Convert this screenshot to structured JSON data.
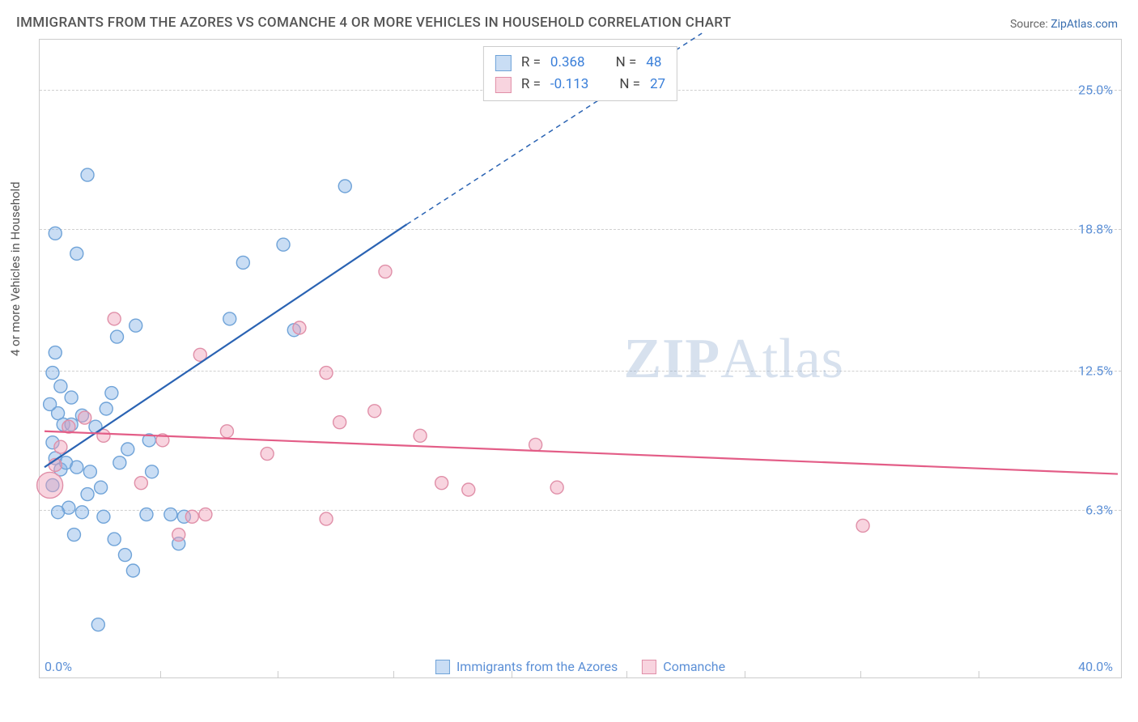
{
  "title": "IMMIGRANTS FROM THE AZORES VS COMANCHE 4 OR MORE VEHICLES IN HOUSEHOLD CORRELATION CHART",
  "source_label": "Source:",
  "source_link": "ZipAtlas.com",
  "ylabel": "4 or more Vehicles in Household",
  "watermark_a": "ZIP",
  "watermark_b": "Atlas",
  "chart": {
    "type": "scatter",
    "xlim": [
      0,
      40
    ],
    "ylim": [
      0,
      27
    ],
    "x_min_label": "0.0%",
    "x_max_label": "40.0%",
    "y_ticks": [
      {
        "v": 6.3,
        "label": "6.3%"
      },
      {
        "v": 12.5,
        "label": "12.5%"
      },
      {
        "v": 18.8,
        "label": "18.8%"
      },
      {
        "v": 25.0,
        "label": "25.0%"
      }
    ],
    "x_tick_positions": [
      4.3,
      8.7,
      13.0,
      17.4,
      21.7,
      26.1,
      30.4,
      34.8
    ],
    "grid_color": "#d0d0d0",
    "background_color": "#ffffff",
    "border_color": "#cccccc",
    "marker_radius": 8,
    "large_marker_radius": 16,
    "marker_stroke_width": 1.4,
    "line_width": 2.2,
    "series": [
      {
        "key": "azores",
        "label": "Immigrants from the Azores",
        "fill": "rgba(135,180,230,0.45)",
        "stroke": "#6fa3d8",
        "line_color": "#2a63b3",
        "stats": {
          "R": "0.368",
          "N": "48"
        },
        "trend": {
          "x1": 0,
          "y1": 8.2,
          "x2": 13.5,
          "y2": 19.0,
          "dash_x2": 24.5,
          "dash_y2": 27.5
        },
        "points": [
          {
            "x": 1.6,
            "y": 21.2
          },
          {
            "x": 0.4,
            "y": 18.6
          },
          {
            "x": 1.2,
            "y": 17.7
          },
          {
            "x": 8.9,
            "y": 18.1
          },
          {
            "x": 7.4,
            "y": 17.3
          },
          {
            "x": 11.2,
            "y": 20.7
          },
          {
            "x": 6.9,
            "y": 14.8
          },
          {
            "x": 9.3,
            "y": 14.3
          },
          {
            "x": 3.8,
            "y": 6.1
          },
          {
            "x": 5.2,
            "y": 6.0
          },
          {
            "x": 4.7,
            "y": 6.1
          },
          {
            "x": 5.0,
            "y": 4.8
          },
          {
            "x": 3.0,
            "y": 4.3
          },
          {
            "x": 3.3,
            "y": 3.6
          },
          {
            "x": 2.6,
            "y": 5.0
          },
          {
            "x": 2.0,
            "y": 1.2
          },
          {
            "x": 1.1,
            "y": 5.2
          },
          {
            "x": 1.4,
            "y": 6.2
          },
          {
            "x": 2.2,
            "y": 6.0
          },
          {
            "x": 0.3,
            "y": 12.4
          },
          {
            "x": 0.4,
            "y": 13.3
          },
          {
            "x": 0.6,
            "y": 11.8
          },
          {
            "x": 1.0,
            "y": 11.3
          },
          {
            "x": 0.5,
            "y": 10.6
          },
          {
            "x": 0.7,
            "y": 10.1
          },
          {
            "x": 0.2,
            "y": 11.0
          },
          {
            "x": 0.3,
            "y": 9.3
          },
          {
            "x": 0.4,
            "y": 8.6
          },
          {
            "x": 0.6,
            "y": 8.1
          },
          {
            "x": 0.8,
            "y": 8.4
          },
          {
            "x": 1.2,
            "y": 8.2
          },
          {
            "x": 1.7,
            "y": 8.0
          },
          {
            "x": 1.0,
            "y": 10.1
          },
          {
            "x": 1.4,
            "y": 10.5
          },
          {
            "x": 1.9,
            "y": 10.0
          },
          {
            "x": 2.3,
            "y": 10.8
          },
          {
            "x": 2.5,
            "y": 11.5
          },
          {
            "x": 3.1,
            "y": 9.0
          },
          {
            "x": 2.8,
            "y": 8.4
          },
          {
            "x": 0.9,
            "y": 6.4
          },
          {
            "x": 1.6,
            "y": 7.0
          },
          {
            "x": 2.1,
            "y": 7.3
          },
          {
            "x": 0.3,
            "y": 7.4
          },
          {
            "x": 0.5,
            "y": 6.2
          },
          {
            "x": 2.7,
            "y": 14.0
          },
          {
            "x": 3.4,
            "y": 14.5
          },
          {
            "x": 3.9,
            "y": 9.4
          },
          {
            "x": 4.0,
            "y": 8.0
          }
        ]
      },
      {
        "key": "comanche",
        "label": "Comanche",
        "fill": "rgba(240,160,185,0.45)",
        "stroke": "#e08fa8",
        "line_color": "#e35d87",
        "stats": {
          "R": "-0.113",
          "N": "27"
        },
        "trend": {
          "x1": 0,
          "y1": 9.8,
          "x2": 40,
          "y2": 7.9
        },
        "points": [
          {
            "x": 12.7,
            "y": 16.9
          },
          {
            "x": 9.5,
            "y": 14.4
          },
          {
            "x": 5.8,
            "y": 13.2
          },
          {
            "x": 10.5,
            "y": 12.4
          },
          {
            "x": 12.3,
            "y": 10.7
          },
          {
            "x": 11.0,
            "y": 10.2
          },
          {
            "x": 8.3,
            "y": 8.8
          },
          {
            "x": 6.8,
            "y": 9.8
          },
          {
            "x": 4.4,
            "y": 9.4
          },
          {
            "x": 5.5,
            "y": 6.0
          },
          {
            "x": 6.0,
            "y": 6.1
          },
          {
            "x": 5.0,
            "y": 5.2
          },
          {
            "x": 3.6,
            "y": 7.5
          },
          {
            "x": 2.2,
            "y": 9.6
          },
          {
            "x": 1.5,
            "y": 10.4
          },
          {
            "x": 2.6,
            "y": 14.8
          },
          {
            "x": 0.9,
            "y": 10.0
          },
          {
            "x": 0.6,
            "y": 9.1
          },
          {
            "x": 0.4,
            "y": 8.3
          },
          {
            "x": 0.2,
            "y": 7.4,
            "large": true
          },
          {
            "x": 10.5,
            "y": 5.9
          },
          {
            "x": 14.8,
            "y": 7.5
          },
          {
            "x": 15.8,
            "y": 7.2
          },
          {
            "x": 18.3,
            "y": 9.2
          },
          {
            "x": 19.1,
            "y": 7.3
          },
          {
            "x": 30.5,
            "y": 5.6
          },
          {
            "x": 14.0,
            "y": 9.6
          }
        ]
      }
    ],
    "legend_r_label": "R =",
    "legend_n_label": "N ="
  }
}
